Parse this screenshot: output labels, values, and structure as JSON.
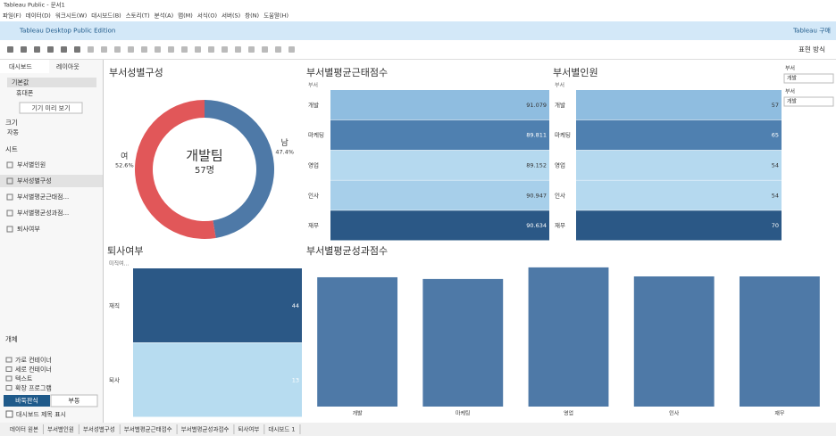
{
  "window_title": "Tableau Public - 문서1",
  "menu": [
    "파일(F)",
    "데이터(D)",
    "워크시트(W)",
    "대시보드(B)",
    "스토리(T)",
    "분석(A)",
    "맵(M)",
    "서식(O)",
    "서버(S)",
    "창(N)",
    "도움말(H)"
  ],
  "banner": {
    "edition": "Tableau Desktop Public Edition",
    "buy": "Tableau 구매"
  },
  "toolbar": {
    "show_me": "표현 방식"
  },
  "left_panel": {
    "tabs": [
      "대시보드",
      "레이아웃"
    ],
    "device": [
      "기본값",
      "휴대폰"
    ],
    "preview_button": "기기 미리 보기",
    "size_title": "크기",
    "size_value": "자동",
    "sheets_title": "시트",
    "sheets": [
      "부서별인원",
      "부서성별구성",
      "부서별평균근태점...",
      "부서별평균성과점...",
      "퇴사여부"
    ],
    "objects_title": "개체",
    "objects": [
      "가로 컨테이너",
      "세로 컨테이너",
      "텍스트",
      "확장 프로그램"
    ],
    "layout_buttons": [
      "바둑판식",
      "부동"
    ],
    "show_title": "대시보드 제목 표시"
  },
  "dashboard": {
    "donut": {
      "type": "pie",
      "title": "부서성별구성",
      "center_label": "개발팀",
      "center_value": "57명",
      "categories": [
        "남",
        "여"
      ],
      "values": [
        47.4,
        52.6
      ],
      "value_labels": [
        "47.4%",
        "52.6%"
      ],
      "colors": [
        "#4e79a7",
        "#e15759"
      ]
    },
    "attendance": {
      "type": "highlight_table",
      "title": "부서별평균근태점수",
      "header": "부서",
      "categories": [
        "개발",
        "마케팅",
        "영업",
        "인사",
        "재무"
      ],
      "values": [
        91.079,
        89.811,
        89.152,
        90.947,
        90.634
      ],
      "colors": [
        "#8fbde0",
        "#4f80b0",
        "#b5d9ef",
        "#a7cfea",
        "#2b5886"
      ]
    },
    "headcount": {
      "type": "highlight_table",
      "title": "부서별인원",
      "header": "부서",
      "categories": [
        "개발",
        "마케팅",
        "영업",
        "인사",
        "재무"
      ],
      "values": [
        57,
        65,
        54,
        54,
        70
      ],
      "colors": [
        "#8fbde0",
        "#4f80b0",
        "#b5d9ef",
        "#b5d9ef",
        "#2b5886"
      ]
    },
    "filters": [
      {
        "label": "부서",
        "value": "개발"
      },
      {
        "label": "부서",
        "value": "개발"
      }
    ],
    "resign": {
      "type": "highlight_table",
      "title": "퇴사여부",
      "header": "미직여...",
      "categories": [
        "재직",
        "퇴사"
      ],
      "values": [
        44,
        13
      ],
      "colors": [
        "#2b5886",
        "#b7dcf0"
      ]
    },
    "performance": {
      "type": "bar",
      "title": "부서별평균성과점수",
      "categories": [
        "개발",
        "마케팅",
        "영업",
        "인사",
        "재무"
      ],
      "values": [
        3.01,
        2.97,
        3.24,
        3.03,
        3.03
      ],
      "ylim": [
        0,
        3.3
      ],
      "color": "#4e79a7"
    }
  },
  "sheet_tabs": [
    "데이터 원본",
    "부서별인원",
    "부서성별구성",
    "부서별평균근태점수",
    "부서별평균성과점수",
    "퇴사여부",
    "대시보드 1"
  ]
}
